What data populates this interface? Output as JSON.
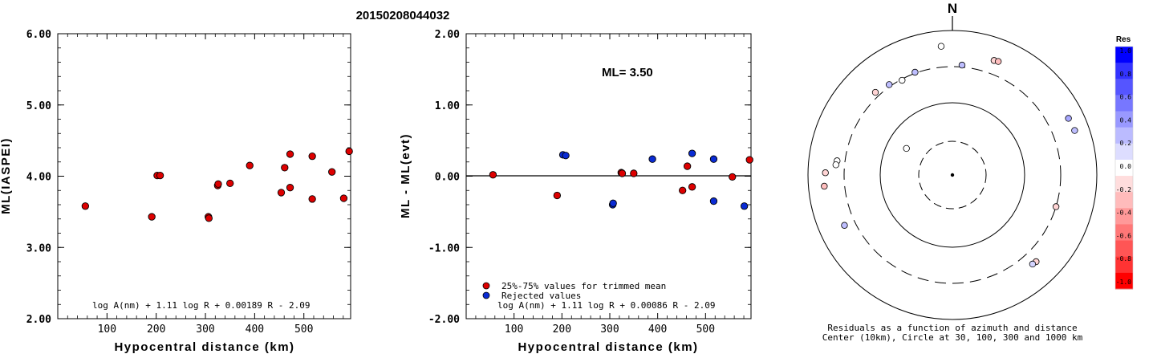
{
  "page_title": "20150208044032",
  "chart_data": [
    {
      "type": "scatter",
      "ylabel": "ML(IASPEI)",
      "xlabel": "Hypocentral distance (km)",
      "xlim": [
        0,
        595
      ],
      "ylim": [
        2.0,
        6.0
      ],
      "x_ticks": [
        "100",
        "200",
        "300",
        "400",
        "500"
      ],
      "y_ticks": [
        "2.00",
        "3.00",
        "4.00",
        "5.00",
        "6.00"
      ],
      "formula": "log A(nm) + 1.11 log R + 0.00189 R - 2.09",
      "points": [
        {
          "x": 56,
          "y": 3.58
        },
        {
          "x": 191,
          "y": 3.43
        },
        {
          "x": 202,
          "y": 4.01
        },
        {
          "x": 208,
          "y": 4.01
        },
        {
          "x": 306,
          "y": 3.43
        },
        {
          "x": 307,
          "y": 3.41
        },
        {
          "x": 325,
          "y": 3.87
        },
        {
          "x": 326,
          "y": 3.89
        },
        {
          "x": 350,
          "y": 3.9
        },
        {
          "x": 390,
          "y": 4.15
        },
        {
          "x": 454,
          "y": 3.77
        },
        {
          "x": 461,
          "y": 4.12
        },
        {
          "x": 472,
          "y": 4.31
        },
        {
          "x": 472,
          "y": 3.84
        },
        {
          "x": 517,
          "y": 4.28
        },
        {
          "x": 517,
          "y": 3.68
        },
        {
          "x": 557,
          "y": 4.06
        },
        {
          "x": 581,
          "y": 3.69
        },
        {
          "x": 592,
          "y": 4.35
        }
      ]
    },
    {
      "type": "scatter",
      "ylabel": "ML - ML(evt)",
      "xlabel": "Hypocentral distance (km)",
      "xlim": [
        0,
        595
      ],
      "ylim": [
        -2.0,
        2.0
      ],
      "x_ticks": [
        "100",
        "200",
        "300",
        "400",
        "500"
      ],
      "y_ticks": [
        "-2.00",
        "-1.00",
        "0.00",
        "1.00",
        "2.00"
      ],
      "annotation": "ML= 3.50",
      "formula": "log A(nm) + 1.11 log R + 0.00086 R - 2.09",
      "legend": [
        {
          "label": "25%-75% values for trimmed mean",
          "color": "#dd0000"
        },
        {
          "label": "Rejected values",
          "color": "#0a2bd4"
        }
      ],
      "series": [
        {
          "name": "25%-75% values for trimmed mean",
          "points": [
            {
              "x": 56,
              "y": 0.02
            },
            {
              "x": 190,
              "y": -0.27
            },
            {
              "x": 324,
              "y": 0.05
            },
            {
              "x": 326,
              "y": 0.04
            },
            {
              "x": 350,
              "y": 0.04
            },
            {
              "x": 452,
              "y": -0.2
            },
            {
              "x": 462,
              "y": 0.14
            },
            {
              "x": 472,
              "y": -0.15
            },
            {
              "x": 556,
              "y": -0.01
            },
            {
              "x": 592,
              "y": 0.23
            }
          ]
        },
        {
          "name": "Rejected values",
          "points": [
            {
              "x": 202,
              "y": 0.3
            },
            {
              "x": 208,
              "y": 0.29
            },
            {
              "x": 306,
              "y": -0.4
            },
            {
              "x": 307,
              "y": -0.38
            },
            {
              "x": 389,
              "y": 0.24
            },
            {
              "x": 472,
              "y": 0.32
            },
            {
              "x": 517,
              "y": 0.24
            },
            {
              "x": 517,
              "y": -0.35
            },
            {
              "x": 581,
              "y": -0.42
            }
          ]
        }
      ]
    },
    {
      "type": "polar-scatter",
      "north_label": "N",
      "caption_line1": "Residuals as a function of azimuth and distance",
      "caption_line2": "Center (10km), Circle at 30, 100, 300 and 1000 km",
      "colorbar_title": "Res",
      "colorbar_ticks": [
        "1.0",
        "0.8",
        "0.6",
        "0.4",
        "0.2",
        "0.0",
        "-0.2",
        "-0.4",
        "-0.6",
        "-0.8",
        "-1.0"
      ],
      "colorbar_colors": [
        "#0000ff",
        "#3333ff",
        "#5555ff",
        "#7777ff",
        "#9999ff",
        "#bbbbff",
        "#ddddff",
        "#ffffff",
        "#ffdddd",
        "#ffbbbb",
        "#ff9999",
        "#ff7777",
        "#ff5555",
        "#ff3333",
        "#ff0000"
      ],
      "points": [
        {
          "azimuth": 355,
          "distance_km": 600,
          "residual": 0.0
        },
        {
          "azimuth": 20,
          "distance_km": 470,
          "residual": -0.2
        },
        {
          "azimuth": 22,
          "distance_km": 480,
          "residual": -0.3
        },
        {
          "azimuth": 5,
          "distance_km": 320,
          "residual": 0.3
        },
        {
          "azimuth": 325,
          "distance_km": 320,
          "residual": 0.3
        },
        {
          "azimuth": 332,
          "distance_km": 290,
          "residual": 0.0
        },
        {
          "azimuth": 340,
          "distance_km": 310,
          "residual": 0.3
        },
        {
          "azimuth": 317,
          "distance_km": 350,
          "residual": -0.2
        },
        {
          "azimuth": 300,
          "distance_km": 55,
          "residual": 0.0
        },
        {
          "azimuth": 277,
          "distance_km": 390,
          "residual": 0.0
        },
        {
          "azimuth": 275,
          "distance_km": 400,
          "residual": 0.0
        },
        {
          "azimuth": 271,
          "distance_km": 560,
          "residual": -0.2
        },
        {
          "azimuth": 265,
          "distance_km": 590,
          "residual": -0.3
        },
        {
          "azimuth": 245,
          "distance_km": 430,
          "residual": 0.3
        },
        {
          "azimuth": 64,
          "distance_km": 600,
          "residual": 0.4
        },
        {
          "azimuth": 70,
          "distance_km": 620,
          "residual": 0.3
        },
        {
          "azimuth": 107,
          "distance_km": 300,
          "residual": -0.2
        },
        {
          "azimuth": 136,
          "distance_km": 450,
          "residual": -0.2
        },
        {
          "azimuth": 138,
          "distance_km": 440,
          "residual": 0.2
        }
      ]
    }
  ]
}
